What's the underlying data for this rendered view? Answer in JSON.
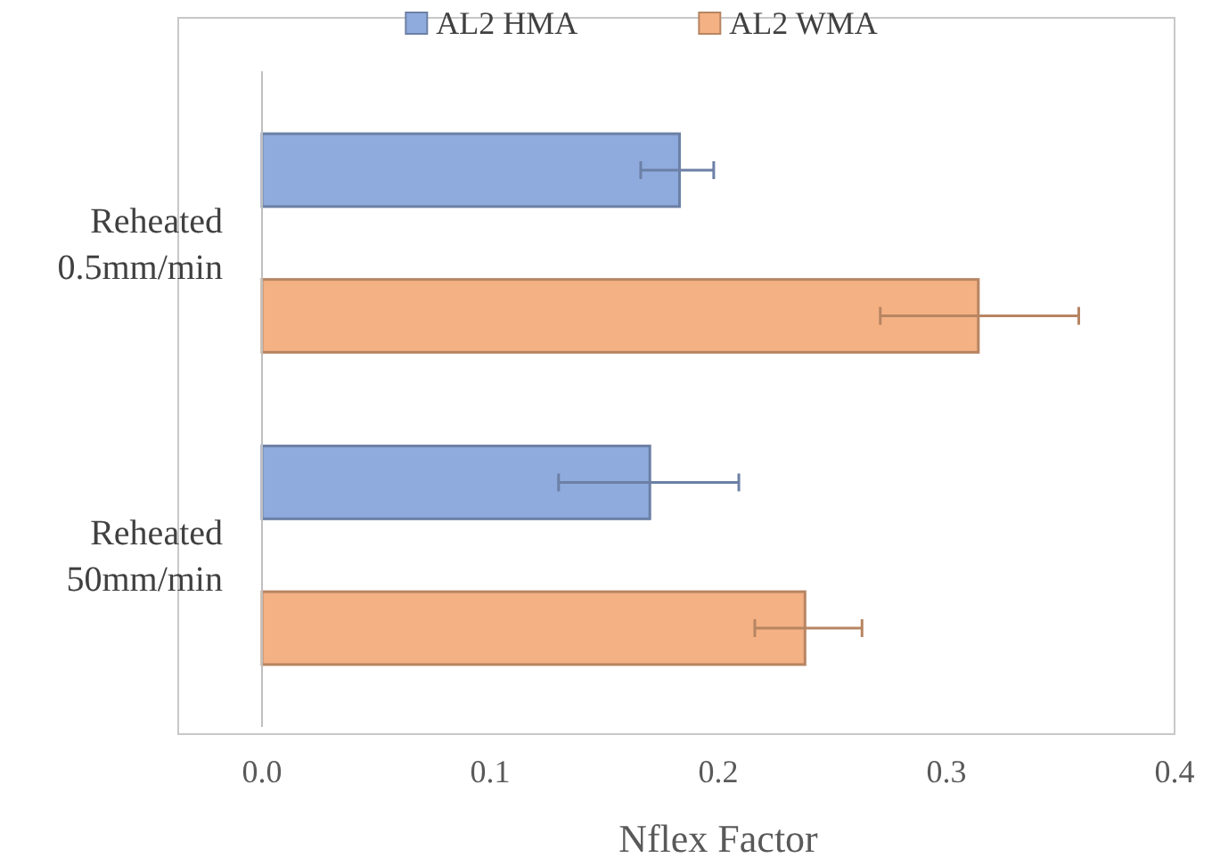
{
  "chart_data": {
    "type": "bar",
    "orientation": "horizontal",
    "xlabel": "Nflex Factor",
    "categories": [
      "Reheated 0.5mm/min",
      "Reheated 50mm/min"
    ],
    "series": [
      {
        "name": "AL2 HMA",
        "color": "#8faadc",
        "values": [
          0.183,
          0.17
        ],
        "errors": [
          [
            0.166,
            0.198
          ],
          [
            0.13,
            0.209
          ]
        ]
      },
      {
        "name": "AL2 WMA",
        "color": "#f4b183",
        "values": [
          0.314,
          0.238
        ],
        "errors": [
          [
            0.271,
            0.358
          ],
          [
            0.216,
            0.263
          ]
        ]
      }
    ],
    "xlim": [
      0,
      0.4
    ],
    "xticks": [
      {
        "value": 0,
        "label": "0.0"
      },
      0.1,
      0.2,
      0.3,
      0.4
    ],
    "grid": false,
    "legend": "top"
  }
}
